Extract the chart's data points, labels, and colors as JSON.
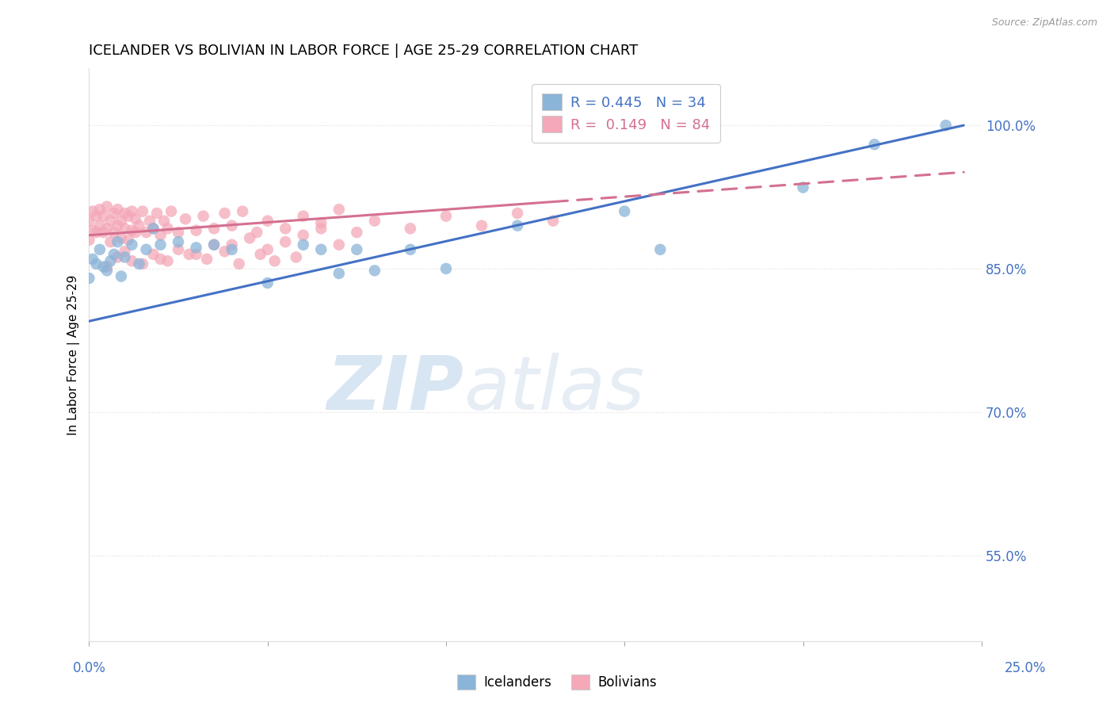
{
  "title": "ICELANDER VS BOLIVIAN IN LABOR FORCE | AGE 25-29 CORRELATION CHART",
  "source": "Source: ZipAtlas.com",
  "ylabel": "In Labor Force | Age 25-29",
  "xlim": [
    0.0,
    0.25
  ],
  "ylim": [
    0.46,
    1.06
  ],
  "ytick_vals": [
    0.55,
    0.7,
    0.85,
    1.0
  ],
  "ytick_labels": [
    "55.0%",
    "70.0%",
    "85.0%",
    "100.0%"
  ],
  "watermark_text": "ZIPatlas",
  "legend_line1": "R = 0.445   N = 34",
  "legend_line2": "R =  0.149   N = 84",
  "blue_scatter": "#8ab4d8",
  "pink_scatter": "#f4a8b8",
  "line_blue_color": "#4472c4",
  "line_pink_color": "#d47090",
  "label_color": "#4472c4",
  "grid_color": "#dddddd",
  "ice_x": [
    0.0,
    0.001,
    0.002,
    0.003,
    0.004,
    0.005,
    0.006,
    0.007,
    0.008,
    0.009,
    0.01,
    0.012,
    0.014,
    0.016,
    0.018,
    0.02,
    0.025,
    0.03,
    0.035,
    0.04,
    0.05,
    0.06,
    0.065,
    0.07,
    0.075,
    0.08,
    0.09,
    0.1,
    0.12,
    0.15,
    0.16,
    0.2,
    0.22,
    0.24
  ],
  "ice_y": [
    0.84,
    0.86,
    0.855,
    0.87,
    0.852,
    0.848,
    0.858,
    0.865,
    0.878,
    0.842,
    0.862,
    0.875,
    0.855,
    0.87,
    0.892,
    0.875,
    0.878,
    0.872,
    0.875,
    0.87,
    0.835,
    0.875,
    0.87,
    0.845,
    0.87,
    0.848,
    0.87,
    0.85,
    0.895,
    0.91,
    0.87,
    0.935,
    0.98,
    1.0
  ],
  "bol_x": [
    0.0,
    0.0,
    0.001,
    0.001,
    0.002,
    0.002,
    0.003,
    0.003,
    0.004,
    0.004,
    0.005,
    0.005,
    0.006,
    0.006,
    0.007,
    0.007,
    0.008,
    0.008,
    0.009,
    0.009,
    0.01,
    0.01,
    0.011,
    0.011,
    0.012,
    0.012,
    0.013,
    0.013,
    0.014,
    0.015,
    0.016,
    0.017,
    0.018,
    0.019,
    0.02,
    0.021,
    0.022,
    0.023,
    0.025,
    0.027,
    0.03,
    0.032,
    0.035,
    0.038,
    0.04,
    0.043,
    0.047,
    0.05,
    0.055,
    0.06,
    0.065,
    0.07,
    0.075,
    0.08,
    0.09,
    0.1,
    0.11,
    0.12,
    0.13,
    0.04,
    0.045,
    0.05,
    0.055,
    0.06,
    0.065,
    0.07,
    0.03,
    0.035,
    0.02,
    0.025,
    0.015,
    0.01,
    0.005,
    0.008,
    0.012,
    0.018,
    0.022,
    0.028,
    0.033,
    0.038,
    0.042,
    0.048,
    0.052,
    0.058
  ],
  "bol_y": [
    0.88,
    0.9,
    0.89,
    0.91,
    0.888,
    0.905,
    0.895,
    0.912,
    0.888,
    0.905,
    0.892,
    0.915,
    0.878,
    0.9,
    0.888,
    0.908,
    0.895,
    0.912,
    0.882,
    0.9,
    0.892,
    0.908,
    0.88,
    0.905,
    0.89,
    0.91,
    0.888,
    0.902,
    0.895,
    0.91,
    0.888,
    0.9,
    0.892,
    0.908,
    0.885,
    0.9,
    0.892,
    0.91,
    0.888,
    0.902,
    0.89,
    0.905,
    0.892,
    0.908,
    0.895,
    0.91,
    0.888,
    0.9,
    0.892,
    0.905,
    0.898,
    0.912,
    0.888,
    0.9,
    0.892,
    0.905,
    0.895,
    0.908,
    0.9,
    0.875,
    0.882,
    0.87,
    0.878,
    0.885,
    0.892,
    0.875,
    0.865,
    0.875,
    0.86,
    0.87,
    0.855,
    0.868,
    0.852,
    0.862,
    0.858,
    0.865,
    0.858,
    0.865,
    0.86,
    0.868,
    0.855,
    0.865,
    0.858,
    0.862
  ]
}
